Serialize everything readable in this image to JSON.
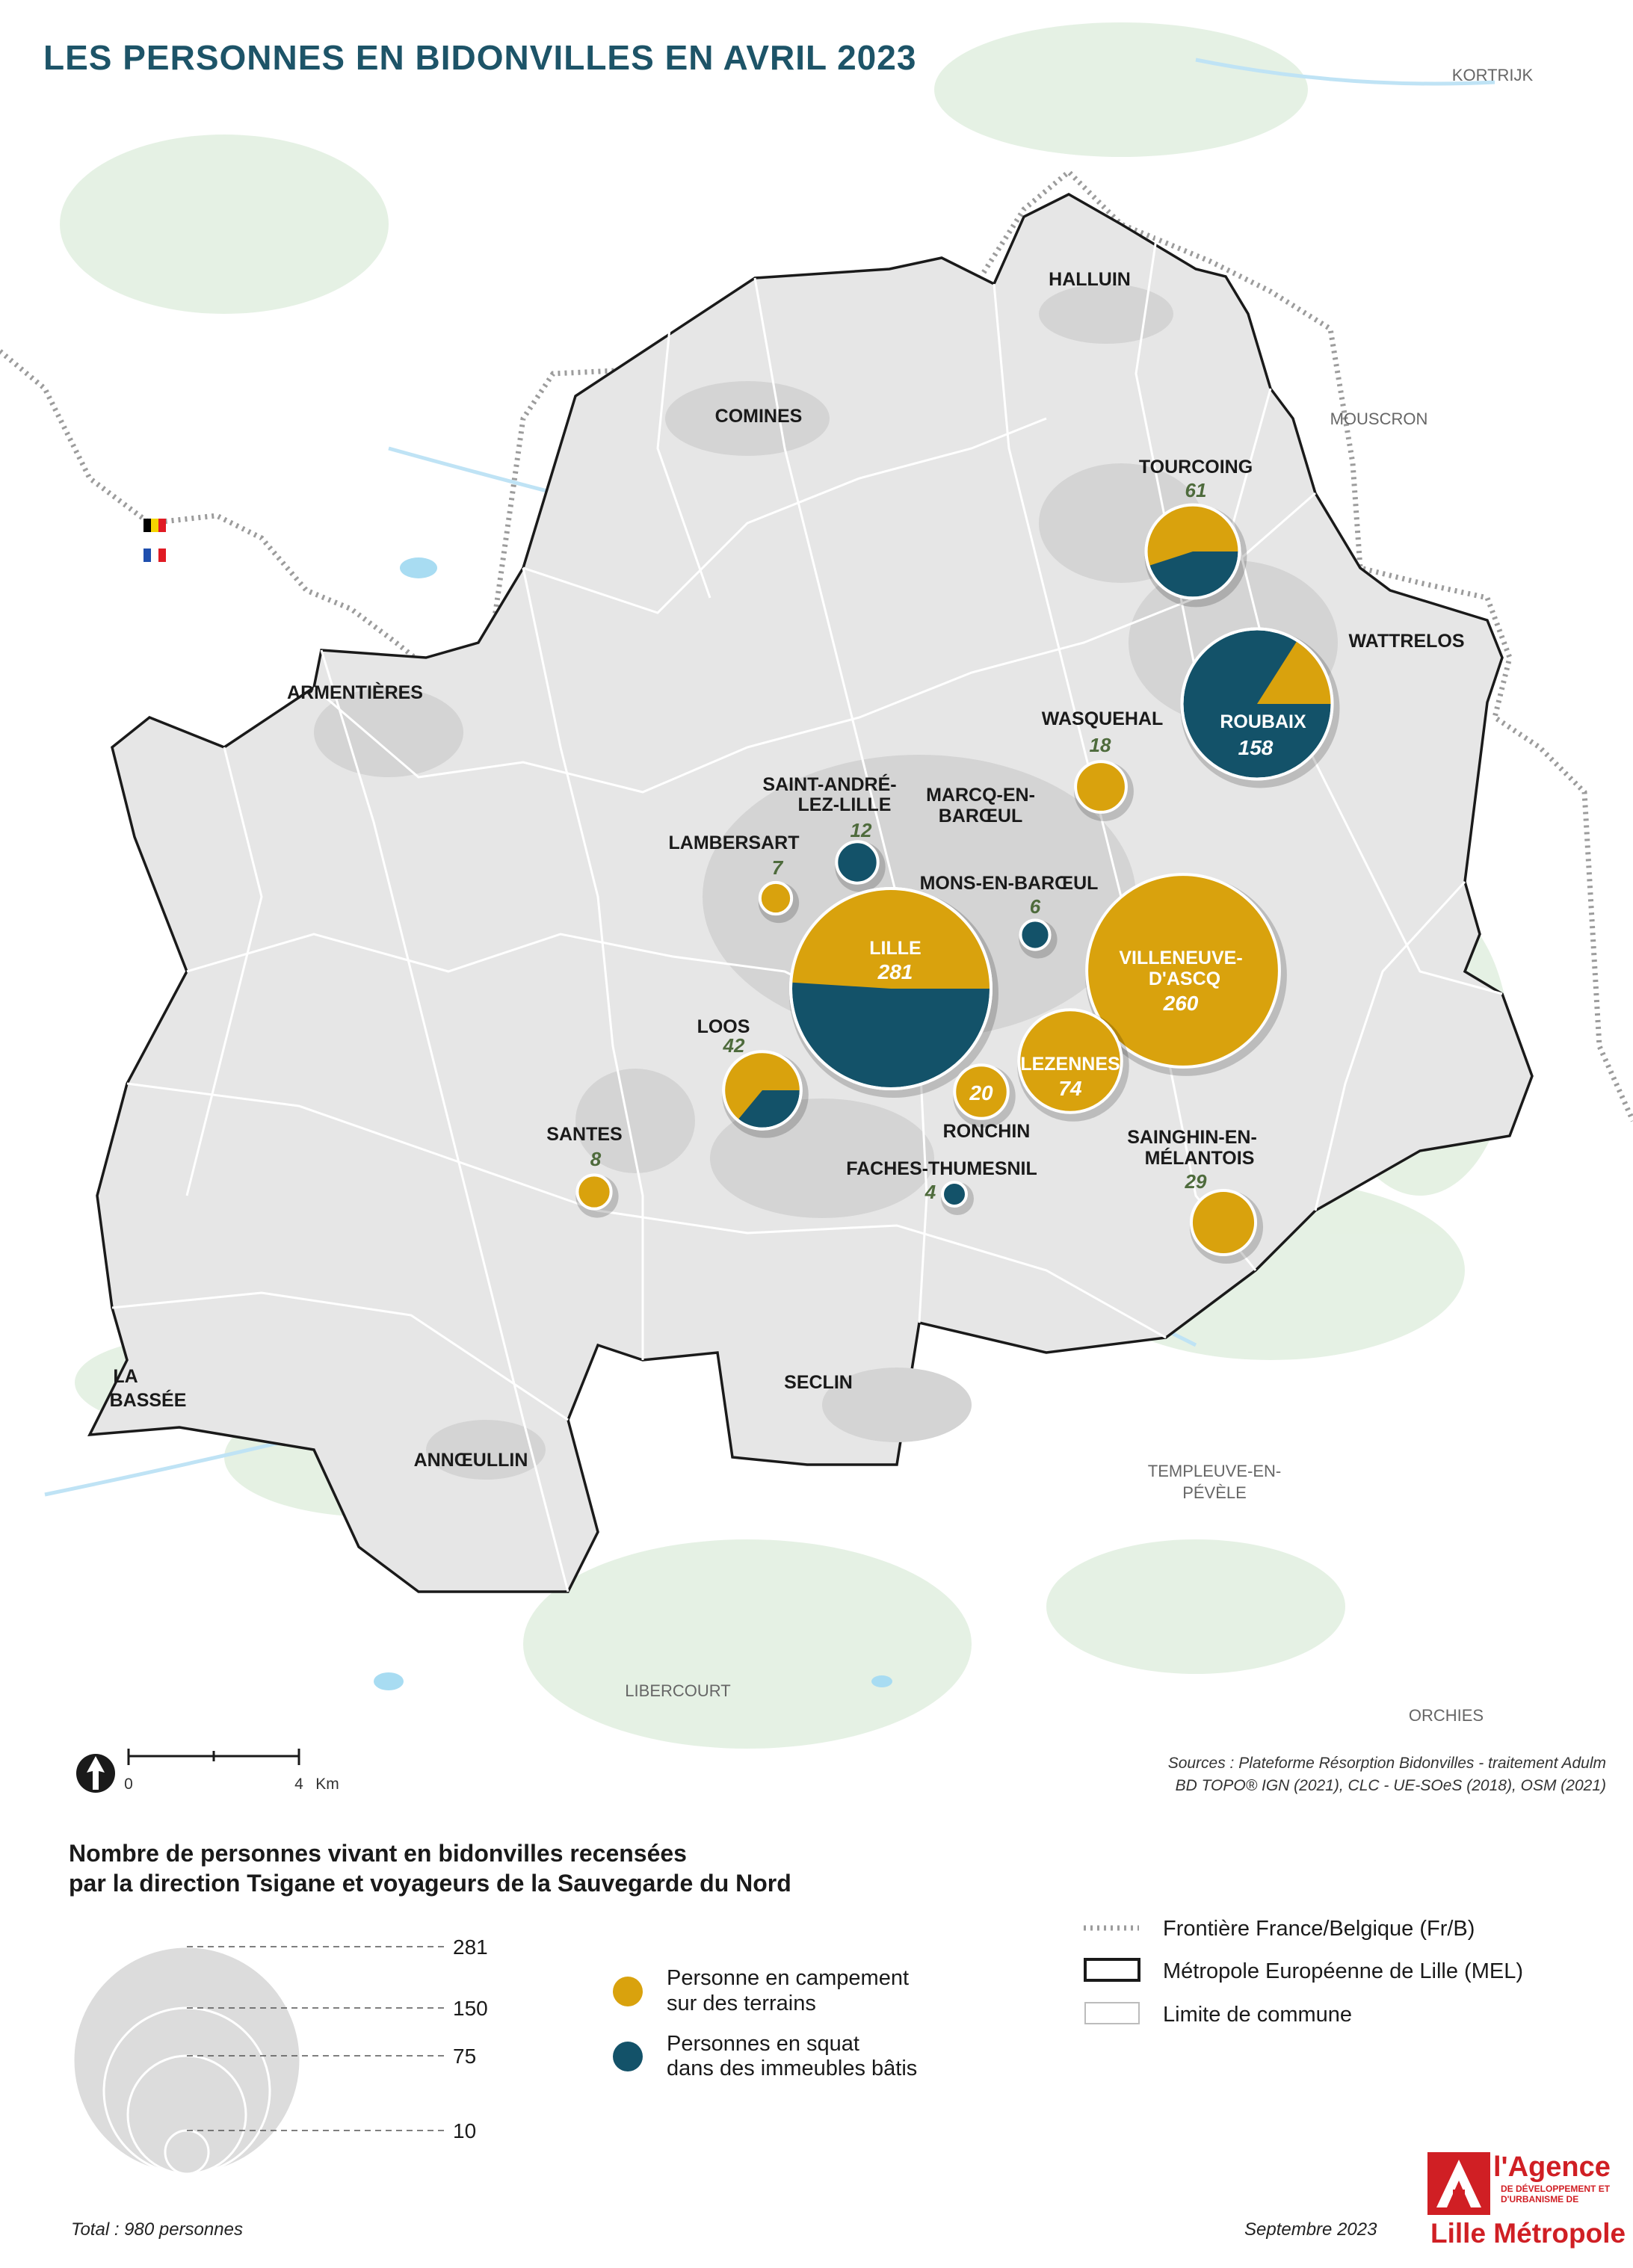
{
  "title": "LES PERSONNES EN BIDONVILLES EN AVRIL 2023",
  "colors": {
    "campement": "#d9a20d",
    "squat": "#135269",
    "mel_fill": "#e6e6e6",
    "commune_line": "#ffffff",
    "title": "#1d5468"
  },
  "communes": [
    {
      "name": "TOURCOING",
      "total": 61,
      "campement_share": 0.55
    },
    {
      "name": "ROUBAIX",
      "total": 158,
      "campement_share": 0.16
    },
    {
      "name": "WASQUEHAL",
      "total": 18,
      "campement_share": 1
    },
    {
      "name": "SAINT-ANDRÉ-LEZ-LILLE",
      "total": 12,
      "campement_share": 0
    },
    {
      "name": "LAMBERSART",
      "total": 7,
      "campement_share": 1
    },
    {
      "name": "MONS-EN-BARŒUL",
      "total": 6,
      "campement_share": 0
    },
    {
      "name": "LILLE",
      "total": 281,
      "campement_share": 0.49
    },
    {
      "name": "VILLENEUVE-D'ASCQ",
      "total": 260,
      "campement_share": 1
    },
    {
      "name": "LOOS",
      "total": 42,
      "campement_share": 0.64
    },
    {
      "name": "LEZENNES",
      "total": 74,
      "campement_share": 1
    },
    {
      "name": "RONCHIN",
      "total": 20,
      "campement_share": 1
    },
    {
      "name": "SANTES",
      "total": 8,
      "campement_share": 1
    },
    {
      "name": "FACHES-THUMESNIL",
      "total": 4,
      "campement_share": 0
    },
    {
      "name": "SAINGHIN-EN-MÉLANTOIS",
      "total": 29,
      "campement_share": 1
    }
  ],
  "map_labels": {
    "halluin": "HALLUIN",
    "comines": "COMINES",
    "armentieres": "ARMENTIÈRES",
    "wattrelos": "WATTRELOS",
    "marcq1": "MARCQ-EN-",
    "marcq2": "BARŒUL",
    "seclin": "SECLIN",
    "annoeullin": "ANNŒULLIN",
    "labassee1": "LA",
    "labassee2": "BASSÉE",
    "tourcoing": "TOURCOING",
    "roubaix": "ROUBAIX",
    "wasquehal": "WASQUEHAL",
    "standre1": "SAINT-ANDRÉ-",
    "standre2": "LEZ-LILLE",
    "lambersart": "LAMBERSART",
    "mons": "MONS-EN-BARŒUL",
    "lille": "LILLE",
    "villeneuve1": "VILLENEUVE-",
    "villeneuve2": "D'ASCQ",
    "loos": "LOOS",
    "lezennes": "LEZENNES",
    "ronchin": "RONCHIN",
    "santes": "SANTES",
    "faches": "FACHES-THUMESNIL",
    "sainghin1": "SAINGHIN-EN-",
    "sainghin2": "MÉLANTOIS"
  },
  "outside_labels": {
    "kortrijk": "KORTRIJK",
    "mouscron": "MOUSCRON",
    "templeuve1": "TEMPLEUVE-EN-",
    "templeuve2": "PÉVÈLE",
    "libercourt": "LIBERCOURT",
    "orchies": "ORCHIES"
  },
  "scale": {
    "start": "0",
    "end": "4",
    "unit": "Km"
  },
  "sources": {
    "line1": "Sources : Plateforme Résorption Bidonvilles - traitement Adulm",
    "line2": "BD TOPO® IGN (2021), CLC - UE-SOeS (2018), OSM (2021)"
  },
  "legend": {
    "title_line1": "Nombre de personnes vivant en bidonvilles recensées",
    "title_line2": "par la direction Tsigane et voyageurs de la Sauvegarde du Nord",
    "size_values": [
      281,
      150,
      75,
      10
    ],
    "campement_line1": "Personne en campement",
    "campement_line2": "sur des terrains",
    "squat_line1": "Personnes en squat",
    "squat_line2": "dans des immeubles bâtis",
    "border": "Frontière France/Belgique (Fr/B)",
    "mel": "Métropole Européenne de Lille (MEL)",
    "commune": "Limite de commune"
  },
  "total": "Total : 980 personnes",
  "date": "Septembre 2023",
  "logo": {
    "main": "l'Agence",
    "sub": "DE DÉVELOPPEMENT ET D'URBANISME DE",
    "bottom": "Lille Métropole"
  }
}
